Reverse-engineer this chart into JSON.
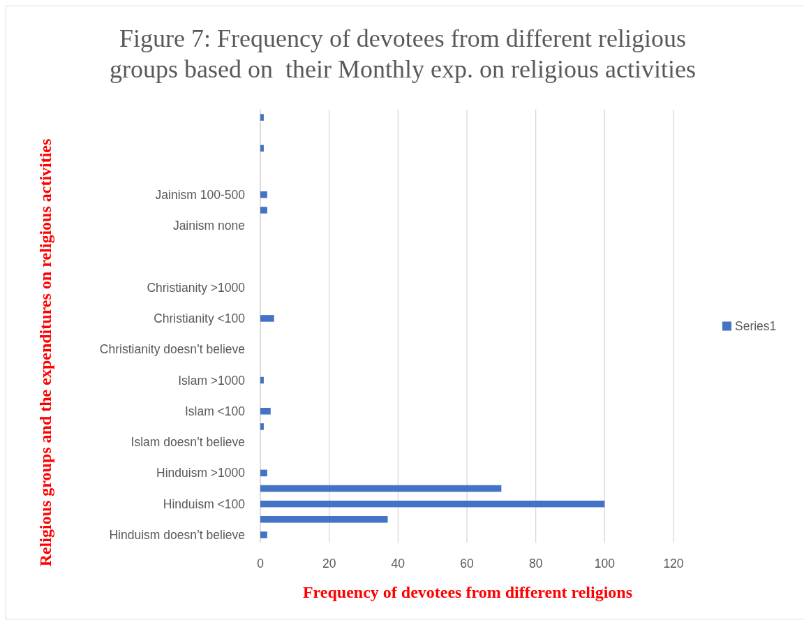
{
  "chart_data": {
    "type": "bar",
    "orientation": "horizontal",
    "title": "Figure 7: Frequency of devotees from different religious\ngroups based on  their Monthly exp. on religious activities",
    "xlabel": "Frequency of devotees from different religions",
    "ylabel": "Religious groups and the expenditures on religious activities",
    "categories": [
      null,
      null,
      null,
      null,
      null,
      "Jainism 100-500",
      null,
      "Jainism none",
      null,
      null,
      null,
      "Christianity >1000",
      null,
      "Christianity <100",
      null,
      "Christianity doesn’t believe",
      null,
      "Islam >1000",
      null,
      "Islam <100",
      null,
      "Islam doesn’t believe",
      null,
      "Hinduism >1000",
      null,
      "Hinduism <100",
      null,
      "Hinduism doesn’t believe"
    ],
    "series": [
      {
        "name": "Series1",
        "color": "#4472c4",
        "values": [
          1,
          null,
          1,
          null,
          null,
          2,
          2,
          null,
          null,
          null,
          null,
          null,
          null,
          4,
          null,
          null,
          null,
          1,
          null,
          3,
          1,
          null,
          null,
          2,
          70,
          100,
          37,
          2
        ]
      }
    ],
    "xlim": [
      0,
      120
    ],
    "xticks": [
      0,
      20,
      40,
      60,
      80,
      100,
      120
    ],
    "grid": "x",
    "legend": "right"
  }
}
